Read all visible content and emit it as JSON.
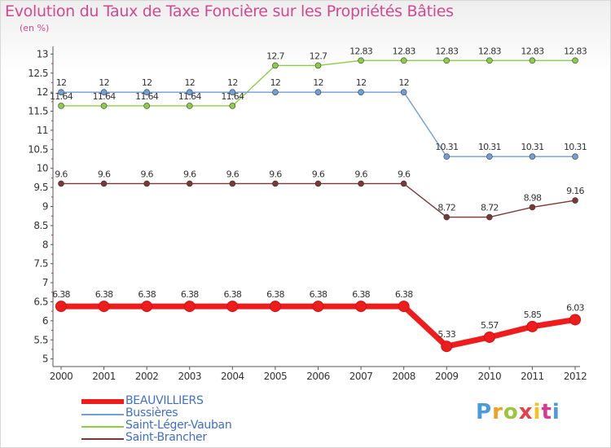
{
  "chart_data": {
    "type": "line",
    "title": "Evolution du Taux de Taxe Foncière sur les Propriétés Bâties",
    "ylabel": "(en %)",
    "xlabel": "",
    "x": [
      "2000",
      "2001",
      "2002",
      "2003",
      "2004",
      "2005",
      "2006",
      "2007",
      "2008",
      "2009",
      "2010",
      "2011",
      "2012"
    ],
    "ylim": [
      4.8,
      13.2
    ],
    "yticks": [
      5,
      5.5,
      6,
      6.5,
      7,
      7.5,
      8,
      8.5,
      9,
      9.5,
      10,
      10.5,
      11,
      11.5,
      12,
      12.5,
      13
    ],
    "ytick_labels": [
      "5",
      "5.5",
      "6",
      "6.5",
      "7",
      "7.5",
      "8",
      "8.5",
      "9",
      "9.5",
      "10",
      "10.5",
      "11",
      "11.5",
      "12",
      "12.5",
      "13"
    ],
    "grid": false,
    "legend_position": "bottom-left",
    "series": [
      {
        "name": "Saint-Léger-Vauban",
        "color": "#8ccd48",
        "emphasis": false,
        "values": [
          11.64,
          11.64,
          11.64,
          11.64,
          11.64,
          12.7,
          12.7,
          12.83,
          12.83,
          12.83,
          12.83,
          12.83,
          12.83
        ],
        "labels": [
          "11.64",
          "11.64",
          "11.64",
          "11.64",
          "11.64",
          "12.7",
          "12.7",
          "12.83",
          "12.83",
          "12.83",
          "12.83",
          "12.83",
          "12.83"
        ]
      },
      {
        "name": "Bussières",
        "color": "#6f9fd6",
        "emphasis": false,
        "values": [
          12,
          12,
          12,
          12,
          12,
          12,
          12,
          12,
          12,
          10.31,
          10.31,
          10.31,
          10.31
        ],
        "labels": [
          "12",
          "12",
          "12",
          "12",
          "12",
          "12",
          "12",
          "12",
          "12",
          "10.31",
          "10.31",
          "10.31",
          "10.31"
        ]
      },
      {
        "name": "Saint-Brancher",
        "color": "#7a3737",
        "emphasis": false,
        "values": [
          9.6,
          9.6,
          9.6,
          9.6,
          9.6,
          9.6,
          9.6,
          9.6,
          9.6,
          8.72,
          8.72,
          8.98,
          9.16
        ],
        "labels": [
          "9.6",
          "9.6",
          "9.6",
          "9.6",
          "9.6",
          "9.6",
          "9.6",
          "9.6",
          "9.6",
          "8.72",
          "8.72",
          "8.98",
          "9.16"
        ]
      },
      {
        "name": "BEAUVILLIERS",
        "color": "#ee1c1c",
        "emphasis": true,
        "values": [
          6.38,
          6.38,
          6.38,
          6.38,
          6.38,
          6.38,
          6.38,
          6.38,
          6.38,
          5.33,
          5.57,
          5.85,
          6.03
        ],
        "labels": [
          "6.38",
          "6.38",
          "6.38",
          "6.38",
          "6.38",
          "6.38",
          "6.38",
          "6.38",
          "6.38",
          "5.33",
          "5.57",
          "5.85",
          "6.03"
        ]
      }
    ]
  },
  "legend": [
    {
      "label": "BEAUVILLIERS",
      "color": "#ee1c1c",
      "emphasis": true
    },
    {
      "label": "Bussières",
      "color": "#6f9fd6",
      "emphasis": false
    },
    {
      "label": "Saint-Léger-Vauban",
      "color": "#8ccd48",
      "emphasis": false
    },
    {
      "label": "Saint-Brancher",
      "color": "#7a3737",
      "emphasis": false
    }
  ],
  "logo": {
    "text": "Proxiti",
    "letters": [
      "P",
      "r",
      "o",
      "x",
      "i",
      "t",
      "i"
    ]
  }
}
